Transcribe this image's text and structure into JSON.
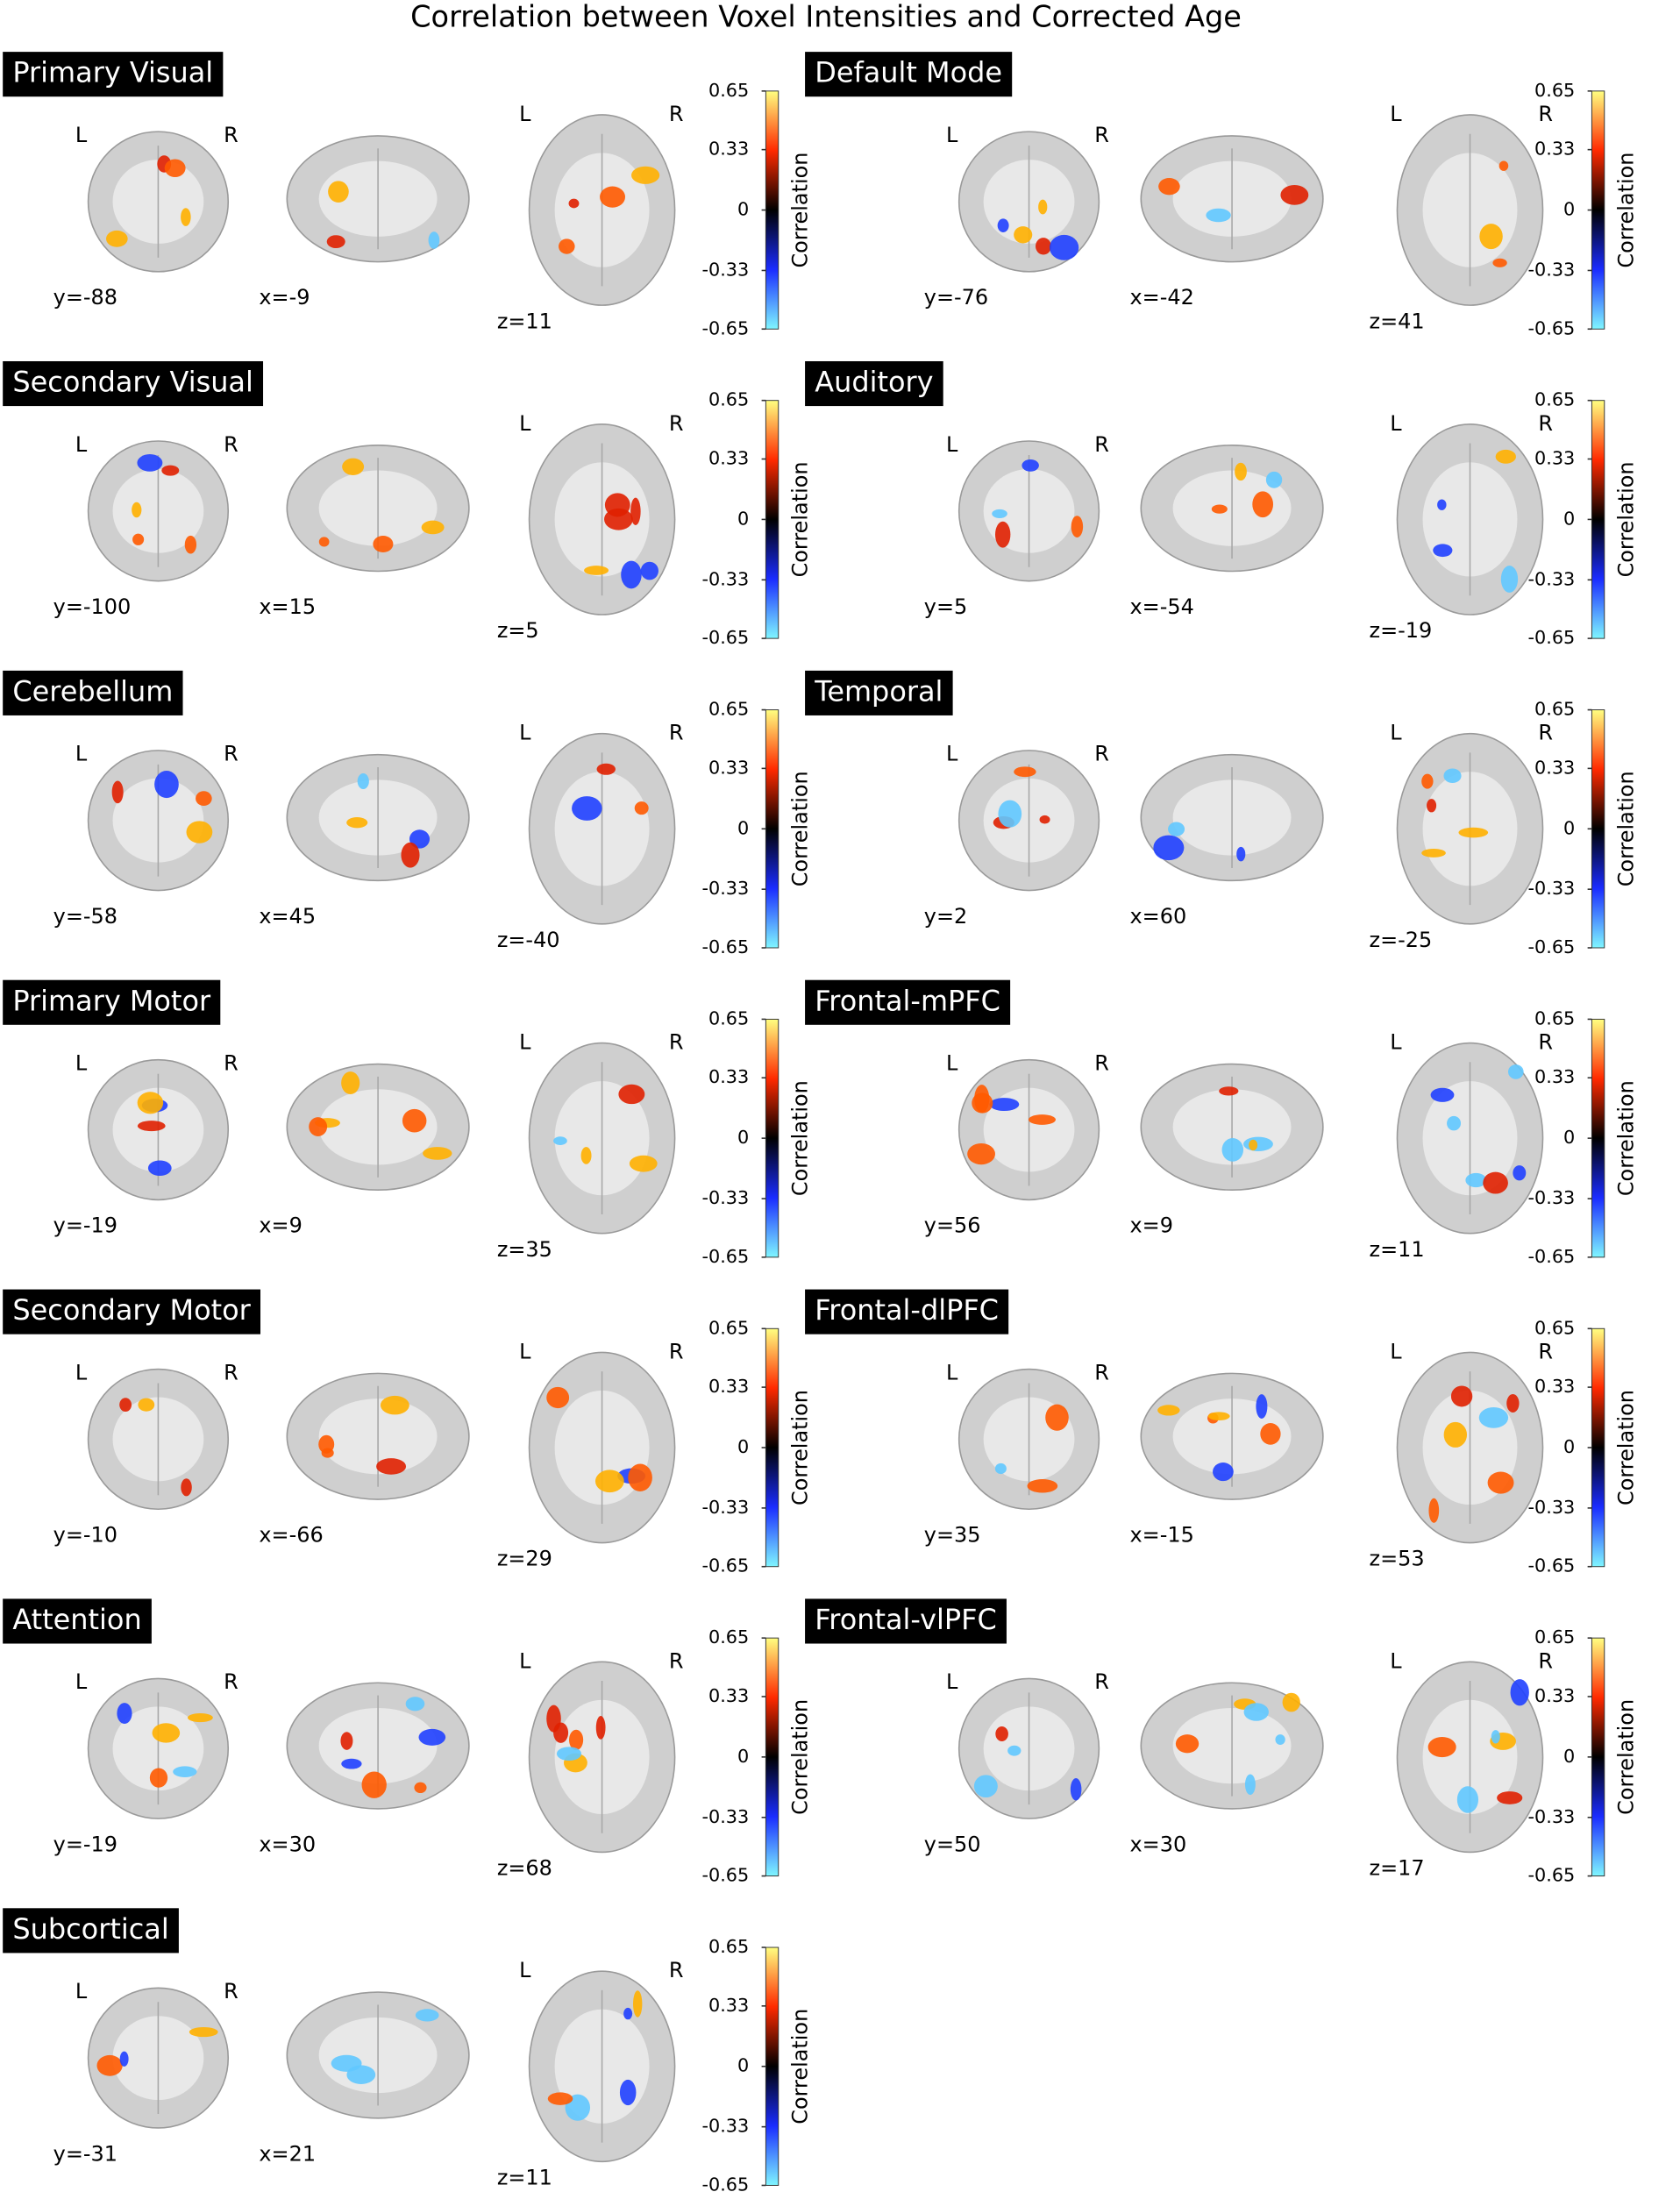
{
  "title": "Correlation between Voxel Intensities and Corrected Age",
  "hemisphere_labels": {
    "left": "L",
    "right": "R"
  },
  "colorbar": {
    "label": "Correlation",
    "ticks": [
      0.65,
      0.33,
      0,
      -0.33,
      -0.65
    ]
  },
  "panels": [
    {
      "title": "Primary Visual",
      "slices": [
        "y=-88",
        "x=-9",
        "z=11"
      ]
    },
    {
      "title": "Default Mode",
      "slices": [
        "y=-76",
        "x=-42",
        "z=41"
      ]
    },
    {
      "title": "Secondary Visual",
      "slices": [
        "y=-100",
        "x=15",
        "z=5"
      ]
    },
    {
      "title": "Auditory",
      "slices": [
        "y=5",
        "x=-54",
        "z=-19"
      ]
    },
    {
      "title": "Cerebellum",
      "slices": [
        "y=-58",
        "x=45",
        "z=-40"
      ]
    },
    {
      "title": "Temporal",
      "slices": [
        "y=2",
        "x=60",
        "z=-25"
      ]
    },
    {
      "title": "Primary Motor",
      "slices": [
        "y=-19",
        "x=9",
        "z=35"
      ]
    },
    {
      "title": "Frontal-mPFC",
      "slices": [
        "y=56",
        "x=9",
        "z=11"
      ]
    },
    {
      "title": "Secondary Motor",
      "slices": [
        "y=-10",
        "x=-66",
        "z=29"
      ]
    },
    {
      "title": "Frontal-dlPFC",
      "slices": [
        "y=35",
        "x=-15",
        "z=53"
      ]
    },
    {
      "title": "Attention",
      "slices": [
        "y=-19",
        "x=30",
        "z=68"
      ]
    },
    {
      "title": "Frontal-vlPFC",
      "slices": [
        "y=50",
        "x=30",
        "z=17"
      ]
    },
    {
      "title": "Subcortical",
      "slices": [
        "y=-31",
        "x=21",
        "z=11"
      ]
    }
  ]
}
